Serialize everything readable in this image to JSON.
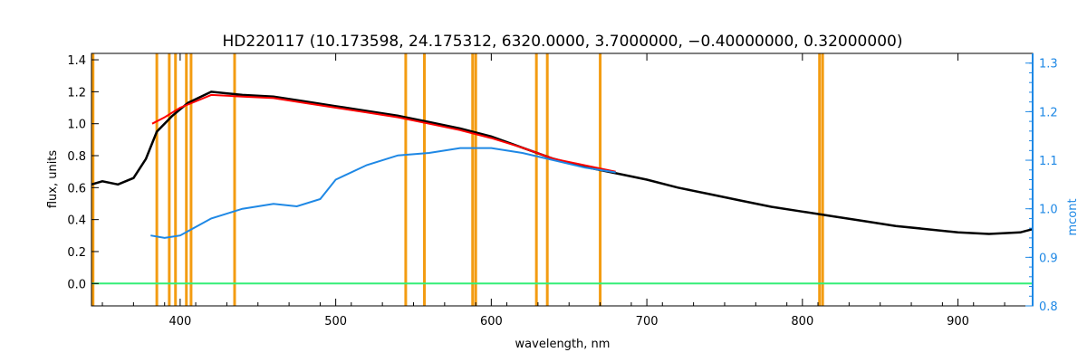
{
  "chart_data": {
    "type": "line",
    "title": "HD220117    (10.173598, 24.175312, 6320.0000, 3.7000000, −0.40000000, 0.32000000)",
    "xlabel": "wavelength, nm",
    "ylabel": "flux, units",
    "y2label": "mcont",
    "xlim": [
      343,
      948
    ],
    "ylim": [
      -0.14,
      1.44
    ],
    "y2lim": [
      0.8,
      1.32
    ],
    "xticks": [
      400,
      500,
      600,
      700,
      800,
      900
    ],
    "yticks": [
      "0.0",
      "0.2",
      "0.4",
      "0.6",
      "0.8",
      "1.0",
      "1.2",
      "1.4"
    ],
    "y2ticks": [
      "0.8",
      "0.9",
      "1.0",
      "1.1",
      "1.2",
      "1.3"
    ],
    "grid": false,
    "colors": {
      "observed": "#000000",
      "model": "#ff0000",
      "continuum": "#1e88e5",
      "residual": "#33ee77",
      "mask": "#f39c12"
    },
    "masked_wavelengths": [
      344,
      385,
      393,
      397,
      404,
      407,
      435,
      545,
      557,
      588,
      590,
      629,
      636,
      670,
      811,
      813
    ],
    "series": [
      {
        "x": [
          343,
          350,
          360,
          370,
          378,
          385,
          395,
          405,
          420,
          440,
          460,
          480,
          500,
          520,
          540,
          560,
          580,
          600,
          620,
          640,
          660,
          680,
          700,
          720,
          740,
          760,
          780,
          800,
          820,
          840,
          860,
          880,
          900,
          920,
          940,
          948
        ],
        "values": [
          0.62,
          0.64,
          0.62,
          0.66,
          0.78,
          0.95,
          1.05,
          1.13,
          1.2,
          1.18,
          1.17,
          1.14,
          1.11,
          1.08,
          1.05,
          1.01,
          0.97,
          0.92,
          0.85,
          0.78,
          0.73,
          0.69,
          0.65,
          0.6,
          0.56,
          0.52,
          0.48,
          0.45,
          0.42,
          0.39,
          0.36,
          0.34,
          0.32,
          0.31,
          0.32,
          0.34
        ]
      },
      {
        "x": [
          382,
          390,
          400,
          410,
          420,
          440,
          460,
          480,
          500,
          520,
          540,
          560,
          580,
          600,
          620,
          640,
          660,
          680
        ],
        "values": [
          1.0,
          1.04,
          1.1,
          1.14,
          1.18,
          1.17,
          1.16,
          1.13,
          1.1,
          1.07,
          1.04,
          1.0,
          0.96,
          0.91,
          0.85,
          0.78,
          0.74,
          0.7
        ]
      },
      {
        "x": [
          381,
          390,
          400,
          420,
          440,
          460,
          475,
          490,
          500,
          520,
          540,
          560,
          580,
          600,
          620,
          640,
          660,
          680
        ],
        "values": [
          0.945,
          0.94,
          0.945,
          0.98,
          1.0,
          1.01,
          1.005,
          1.02,
          1.06,
          1.09,
          1.11,
          1.115,
          1.125,
          1.125,
          1.115,
          1.1,
          1.085,
          1.075
        ]
      },
      {
        "x": [
          343,
          380,
          381,
          500,
          680,
          681,
          948
        ],
        "values": [
          0.0,
          0.0,
          0.0,
          0.0,
          0.0,
          0.0,
          0.0
        ]
      }
    ]
  }
}
